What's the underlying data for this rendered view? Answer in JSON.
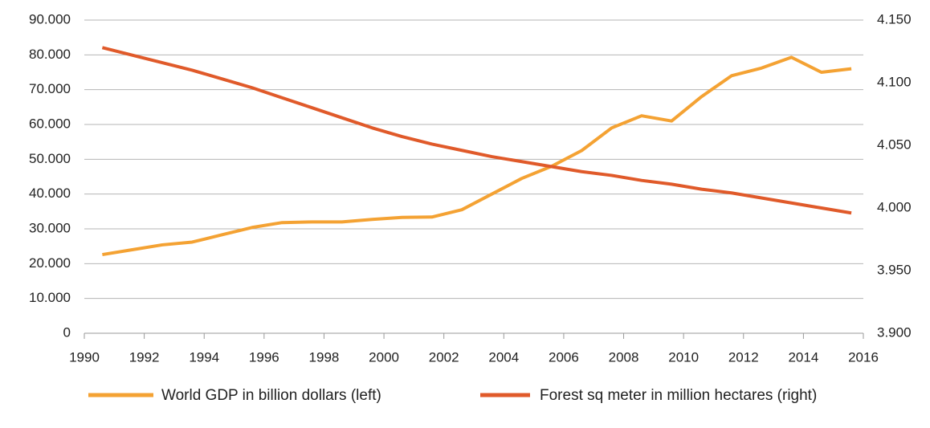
{
  "chart_data": {
    "type": "line",
    "x": [
      1990.6,
      1991.6,
      1992.6,
      1993.6,
      1994.6,
      1995.6,
      1996.6,
      1997.6,
      1998.6,
      1999.6,
      2000.6,
      2001.6,
      2002.6,
      2003.6,
      2004.6,
      2005.6,
      2006.6,
      2007.6,
      2008.6,
      2009.6,
      2010.6,
      2011.6,
      2012.6,
      2013.6,
      2014.6,
      2015.6
    ],
    "series": [
      {
        "name": "World GDP in billion dollars (left)",
        "color": "#f4a233",
        "values": [
          22600,
          24000,
          25400,
          26200,
          28300,
          30400,
          31800,
          32000,
          32000,
          32700,
          33300,
          33400,
          35500,
          40000,
          44500,
          48000,
          52500,
          59000,
          62500,
          61000,
          68000,
          74000,
          76200,
          79300,
          75000,
          76000
        ]
      },
      {
        "name": "Forest sq meter in million hectares (right)",
        "color": "#e05a2a",
        "axis": "y2",
        "values": [
          4128,
          4122,
          4116,
          4110,
          4103,
          4096,
          4088,
          4080,
          4072,
          4064,
          4057,
          4051,
          4046,
          4041,
          4037,
          4033,
          4029,
          4026,
          4022,
          4019,
          4015,
          4012,
          4008,
          4004,
          4000,
          3996
        ]
      }
    ],
    "xlim": [
      1990,
      2016
    ],
    "xticks": [
      1990,
      1992,
      1994,
      1996,
      1998,
      2000,
      2002,
      2004,
      2006,
      2008,
      2010,
      2012,
      2014,
      2016
    ],
    "ylim": [
      0,
      90000
    ],
    "yticks": [
      0,
      {
        "value": 10000,
        "label": "10.000"
      },
      {
        "value": 20000,
        "label": "20.000"
      },
      {
        "value": 30000,
        "label": "30.000"
      },
      {
        "value": 40000,
        "label": "40.000"
      },
      {
        "value": 50000,
        "label": "50.000"
      },
      {
        "value": 60000,
        "label": "60.000"
      },
      {
        "value": 70000,
        "label": "70.000"
      },
      {
        "value": 80000,
        "label": "80.000"
      },
      {
        "value": 90000,
        "label": "90.000"
      }
    ],
    "y2lim": [
      3900,
      4150
    ],
    "y2ticks": [
      {
        "value": 3900,
        "label": "3.900"
      },
      {
        "value": 3950,
        "label": "3.950"
      },
      {
        "value": 4000,
        "label": "4.000"
      },
      {
        "value": 4050,
        "label": "4.050"
      },
      {
        "value": 4100,
        "label": "4.100"
      },
      {
        "value": 4150,
        "label": "4.150"
      }
    ],
    "grid": true,
    "legend": "bottom"
  }
}
